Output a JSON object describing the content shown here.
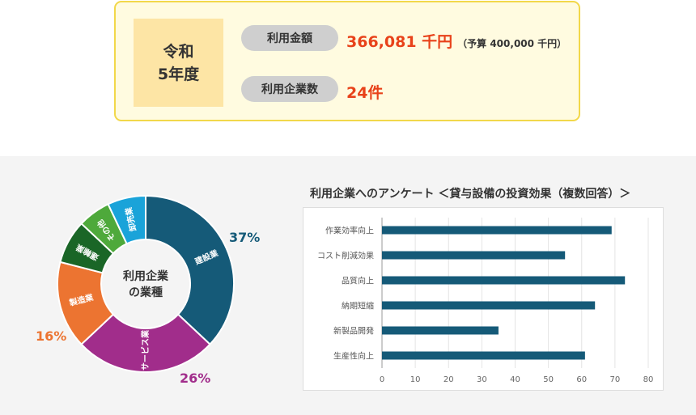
{
  "summary": {
    "year_line1": "令和",
    "year_line2": "5年度",
    "amount_label": "利用金額",
    "amount_value": "366,081 千円",
    "amount_budget": "（予算 400,000 千円）",
    "companies_label": "利用企業数",
    "companies_value": "24件"
  },
  "colors": {
    "summary_border": "#f2d84a",
    "summary_bg": "#fffbe0",
    "year_bg": "#fde5a5",
    "accent_red": "#e8421a",
    "bar": "#155a78"
  },
  "chart_data": [
    {
      "type": "pie",
      "title": "利用企業の業種",
      "center_label_line1": "利用企業",
      "center_label_line2": "の業種",
      "slices": [
        {
          "label": "建設業",
          "value": 37,
          "color": "#155a78",
          "pct_label": "37%"
        },
        {
          "label": "サービス業",
          "value": 26,
          "color": "#a12d8b",
          "pct_label": "26%"
        },
        {
          "label": "製造業",
          "value": 16,
          "color": "#ec7431",
          "pct_label": "16%"
        },
        {
          "label": "運輸業",
          "value": 8,
          "color": "#1a6627"
        },
        {
          "label": "その他",
          "value": 6,
          "color": "#4ea93b"
        },
        {
          "label": "卸売業",
          "value": 7,
          "color": "#1aa3d9"
        }
      ]
    },
    {
      "type": "bar",
      "orientation": "horizontal",
      "title": "利用企業へのアンケート ＜貸与設備の投資効果（複数回答）＞",
      "categories": [
        "作業効率向上",
        "コスト削減効果",
        "品質向上",
        "納期短縮",
        "新製品開発",
        "生産性向上"
      ],
      "values": [
        69,
        55,
        73,
        64,
        35,
        61
      ],
      "xlim": [
        0,
        80
      ],
      "xticks": [
        "0",
        "10",
        "20",
        "30",
        "40",
        "50",
        "60",
        "70",
        "80"
      ],
      "grid": true
    }
  ]
}
